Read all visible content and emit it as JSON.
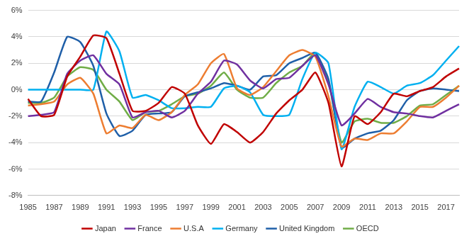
{
  "chart_data": {
    "type": "line",
    "categories": [
      "1985",
      null,
      "1987",
      null,
      "1989",
      null,
      "1991",
      null,
      "1993",
      null,
      "1995",
      null,
      "1997",
      null,
      "1999",
      null,
      "2001",
      null,
      "2003",
      null,
      "2005",
      null,
      "2007",
      null,
      "2009",
      null,
      "2011",
      null,
      "2013",
      null,
      "2015",
      null,
      "2017",
      null
    ],
    "series": [
      {
        "name": "Japan",
        "color": "#c00000",
        "values": [
          -0.7,
          -2.0,
          -1.9,
          1.0,
          2.5,
          4.1,
          3.9,
          1.2,
          -1.6,
          -1.6,
          -1.0,
          0.2,
          -0.3,
          -2.7,
          -4.1,
          -2.6,
          -3.2,
          -4.0,
          -3.2,
          -1.8,
          -0.8,
          0.0,
          1.3,
          -1.0,
          -5.8,
          -2.0,
          -2.6,
          -1.7,
          -0.3,
          -0.5,
          -0.1,
          0.2,
          1.0,
          1.6
        ]
      },
      {
        "name": "France",
        "color": "#7030a0",
        "values": [
          -2.0,
          -1.9,
          -1.7,
          1.2,
          2.2,
          2.6,
          1.2,
          0.4,
          -2.1,
          -1.7,
          -1.6,
          -2.1,
          -1.6,
          -0.3,
          0.6,
          2.2,
          1.9,
          0.7,
          0.1,
          0.8,
          0.9,
          1.8,
          2.6,
          0.4,
          -2.7,
          -1.8,
          -0.7,
          -1.3,
          -1.7,
          -1.8,
          -2.0,
          -2.1,
          -1.6,
          -1.1
        ]
      },
      {
        "name": "U.S.A",
        "color": "#ed7d31",
        "values": [
          -1.2,
          -1.1,
          -0.9,
          0.4,
          0.9,
          -0.3,
          -3.3,
          -2.7,
          -2.9,
          -1.9,
          -2.3,
          -1.7,
          -0.4,
          0.4,
          2.0,
          2.7,
          0.1,
          -0.4,
          0.2,
          1.4,
          2.6,
          3.0,
          2.5,
          -0.5,
          -4.3,
          -3.7,
          -3.8,
          -3.3,
          -3.3,
          -2.4,
          -1.3,
          -1.3,
          -0.6,
          0.3
        ]
      },
      {
        "name": "Germany",
        "color": "#00b0f0",
        "values": [
          0,
          0,
          0,
          0,
          0,
          0,
          4.4,
          2.9,
          -0.6,
          -0.4,
          -0.8,
          -1.4,
          -1.4,
          -1.3,
          -1.3,
          0.1,
          0.3,
          -0.2,
          -1.9,
          -2.0,
          -1.9,
          0.8,
          2.8,
          2.0,
          -4.5,
          -1.3,
          0.6,
          0.2,
          -0.3,
          0.3,
          0.5,
          1.1,
          2.2,
          3.3
        ]
      },
      {
        "name": "United Kingdom",
        "color": "#1f5fa8",
        "values": [
          -0.9,
          -0.9,
          1.3,
          4.0,
          3.6,
          1.8,
          -1.8,
          -3.5,
          -3.1,
          -1.9,
          -1.8,
          -1.7,
          -0.5,
          -0.2,
          0.1,
          0.5,
          0.3,
          0.0,
          1.0,
          1.1,
          2.0,
          2.4,
          2.8,
          0.8,
          -4.4,
          -3.7,
          -3.3,
          -3.1,
          -2.3,
          -0.8,
          -0.1,
          0.1,
          0.0,
          -0.1
        ]
      },
      {
        "name": "OECD",
        "color": "#70ad47",
        "values": [
          -1.0,
          -1.0,
          -0.6,
          1.0,
          1.7,
          1.5,
          0.0,
          -0.9,
          -2.3,
          -1.7,
          -1.6,
          -1.1,
          -0.5,
          -0.3,
          0.3,
          1.3,
          0.0,
          -0.6,
          -0.6,
          0.5,
          1.3,
          1.8,
          2.8,
          0.6,
          -4.0,
          -2.4,
          -2.2,
          -2.5,
          -2.5,
          -2.0,
          -1.2,
          -1.1,
          -0.4,
          0.3
        ]
      }
    ],
    "ylim": [
      -8,
      6
    ],
    "yticks": [
      {
        "value": -8,
        "label": "-8%"
      },
      {
        "value": -6,
        "label": "-6%"
      },
      {
        "value": -4,
        "label": "-4%"
      },
      {
        "value": -2,
        "label": "-2%"
      },
      {
        "value": 0,
        "label": "0%"
      },
      {
        "value": 2,
        "label": "2%"
      },
      {
        "value": 4,
        "label": "4%"
      },
      {
        "value": 6,
        "label": "6%"
      }
    ],
    "grid": true,
    "legend": "bottom"
  }
}
